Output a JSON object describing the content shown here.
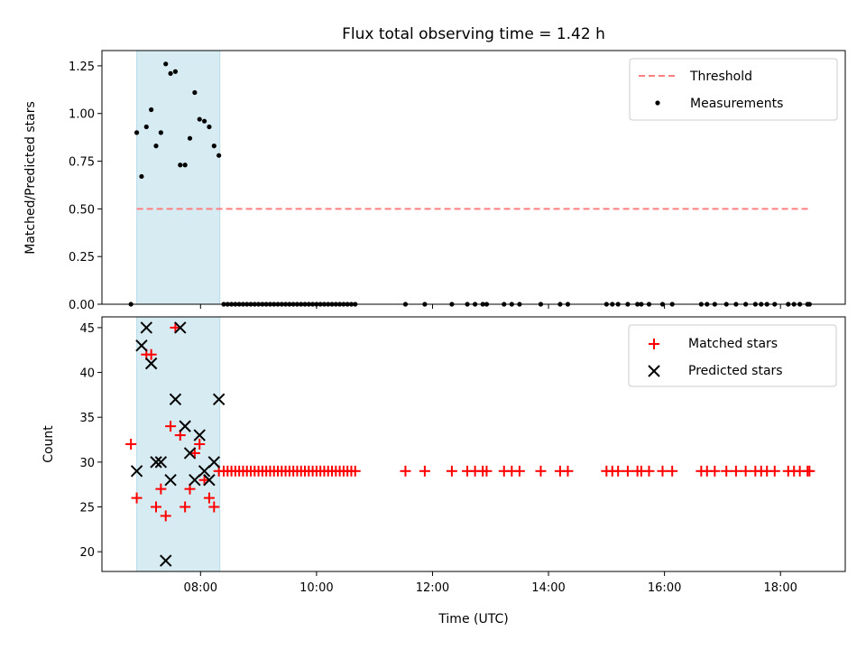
{
  "figure": {
    "title": "Flux total observing time = 1.42 h",
    "xlabel": "Time (UTC)"
  },
  "chart_data": [
    {
      "type": "scatter",
      "name": "top",
      "ylabel": "Matched/Predicted stars",
      "xlim": [
        "06:18",
        "19:07"
      ],
      "ylim": [
        0,
        1.33
      ],
      "yticks": [
        "0.00",
        "0.25",
        "0.50",
        "0.75",
        "1.00",
        "1.25"
      ],
      "ytick_values": [
        0,
        0.25,
        0.5,
        0.75,
        1.0,
        1.25
      ],
      "shaded_span": [
        "06:54",
        "08:20"
      ],
      "shade_color": "#add8e6",
      "threshold": {
        "label": "Threshold",
        "value": 0.5,
        "x_range": [
          "06:54",
          "18:30"
        ],
        "color": "#ff7f7f"
      },
      "series": [
        {
          "name": "Measurements",
          "marker": "dot",
          "color": "#000000",
          "x": [
            "06:48",
            "06:54",
            "06:59",
            "07:04",
            "07:09",
            "07:14",
            "07:19",
            "07:24",
            "07:29",
            "07:34",
            "07:39",
            "07:44",
            "07:49",
            "07:54",
            "07:59",
            "08:04",
            "08:09",
            "08:14",
            "08:19",
            "08:24",
            "08:28",
            "08:32",
            "08:36",
            "08:40",
            "08:44",
            "08:48",
            "08:52",
            "08:56",
            "09:00",
            "09:04",
            "09:08",
            "09:12",
            "09:16",
            "09:20",
            "09:24",
            "09:28",
            "09:32",
            "09:36",
            "09:40",
            "09:44",
            "09:48",
            "09:52",
            "09:56",
            "10:00",
            "10:04",
            "10:08",
            "10:12",
            "10:16",
            "10:20",
            "10:24",
            "10:28",
            "10:32",
            "10:36",
            "10:40",
            "11:32",
            "11:52",
            "12:20",
            "12:36",
            "12:44",
            "12:52",
            "12:56",
            "13:14",
            "13:22",
            "13:30",
            "13:52",
            "14:12",
            "14:20",
            "15:00",
            "15:06",
            "15:12",
            "15:22",
            "15:32",
            "15:36",
            "15:44",
            "15:58",
            "16:08",
            "16:38",
            "16:44",
            "16:52",
            "17:04",
            "17:14",
            "17:24",
            "17:34",
            "17:40",
            "17:46",
            "17:54",
            "18:08",
            "18:14",
            "18:20",
            "18:28",
            "18:30"
          ],
          "y": [
            0.0,
            0.9,
            0.67,
            0.93,
            1.02,
            0.83,
            0.9,
            1.26,
            1.21,
            1.22,
            0.73,
            0.73,
            0.87,
            1.11,
            0.97,
            0.96,
            0.93,
            0.83,
            0.78,
            0.0,
            0.0,
            0.0,
            0.0,
            0.0,
            0.0,
            0.0,
            0.0,
            0.0,
            0.0,
            0.0,
            0.0,
            0.0,
            0.0,
            0.0,
            0.0,
            0.0,
            0.0,
            0.0,
            0.0,
            0.0,
            0.0,
            0.0,
            0.0,
            0.0,
            0.0,
            0.0,
            0.0,
            0.0,
            0.0,
            0.0,
            0.0,
            0.0,
            0.0,
            0.0,
            0.0,
            0.0,
            0.0,
            0.0,
            0.0,
            0.0,
            0.0,
            0.0,
            0.0,
            0.0,
            0.0,
            0.0,
            0.0,
            0.0,
            0.0,
            0.0,
            0.0,
            0.0,
            0.0,
            0.0,
            0.0,
            0.0,
            0.0,
            0.0,
            0.0,
            0.0,
            0.0,
            0.0,
            0.0,
            0.0,
            0.0,
            0.0,
            0.0,
            0.0,
            0.0,
            0.0,
            0.0
          ]
        }
      ],
      "legend": {
        "position": "top-right",
        "entries": [
          "Threshold",
          "Measurements"
        ]
      }
    },
    {
      "type": "scatter",
      "name": "bottom",
      "ylabel": "Count",
      "xlim": [
        "06:18",
        "19:07"
      ],
      "ylim": [
        17.8,
        46.2
      ],
      "yticks": [
        "20",
        "25",
        "30",
        "35",
        "40",
        "45"
      ],
      "ytick_values": [
        20,
        25,
        30,
        35,
        40,
        45
      ],
      "xticks": [
        "08:00",
        "10:00",
        "12:00",
        "14:00",
        "16:00",
        "18:00"
      ],
      "shaded_span": [
        "06:54",
        "08:20"
      ],
      "shade_color": "#add8e6",
      "series": [
        {
          "name": "Matched stars",
          "marker": "plus",
          "color": "#ff0000",
          "x": [
            "06:48",
            "06:54",
            "07:04",
            "07:09",
            "07:14",
            "07:19",
            "07:24",
            "07:29",
            "07:34",
            "07:39",
            "07:44",
            "07:49",
            "07:54",
            "07:59",
            "08:04",
            "08:09",
            "08:14",
            "08:19",
            "08:24",
            "08:28",
            "08:32",
            "08:36",
            "08:40",
            "08:44",
            "08:48",
            "08:52",
            "08:56",
            "09:00",
            "09:04",
            "09:08",
            "09:12",
            "09:16",
            "09:20",
            "09:24",
            "09:28",
            "09:32",
            "09:36",
            "09:40",
            "09:44",
            "09:48",
            "09:52",
            "09:56",
            "10:00",
            "10:04",
            "10:08",
            "10:12",
            "10:16",
            "10:20",
            "10:24",
            "10:28",
            "10:32",
            "10:36",
            "10:40",
            "11:32",
            "11:52",
            "12:20",
            "12:36",
            "12:44",
            "12:52",
            "12:56",
            "13:14",
            "13:22",
            "13:30",
            "13:52",
            "14:12",
            "14:20",
            "15:00",
            "15:06",
            "15:12",
            "15:22",
            "15:32",
            "15:36",
            "15:44",
            "15:58",
            "16:08",
            "16:38",
            "16:44",
            "16:52",
            "17:04",
            "17:14",
            "17:24",
            "17:34",
            "17:40",
            "17:46",
            "17:54",
            "18:08",
            "18:14",
            "18:20",
            "18:28",
            "18:30"
          ],
          "y": [
            32,
            26,
            42,
            42,
            25,
            27,
            24,
            34,
            45,
            33,
            25,
            27,
            31,
            32,
            28,
            26,
            25,
            29,
            29,
            29,
            29,
            29,
            29,
            29,
            29,
            29,
            29,
            29,
            29,
            29,
            29,
            29,
            29,
            29,
            29,
            29,
            29,
            29,
            29,
            29,
            29,
            29,
            29,
            29,
            29,
            29,
            29,
            29,
            29,
            29,
            29,
            29,
            29,
            29,
            29,
            29,
            29,
            29,
            29,
            29,
            29,
            29,
            29,
            29,
            29,
            29,
            29,
            29,
            29,
            29,
            29,
            29,
            29,
            29,
            29,
            29,
            29,
            29,
            29,
            29,
            29,
            29,
            29,
            29,
            29,
            29,
            29,
            29,
            29,
            29
          ]
        },
        {
          "name": "Predicted stars",
          "marker": "x",
          "color": "#000000",
          "x": [
            "06:54",
            "06:59",
            "07:04",
            "07:09",
            "07:14",
            "07:19",
            "07:24",
            "07:29",
            "07:34",
            "07:39",
            "07:44",
            "07:49",
            "07:54",
            "07:59",
            "08:04",
            "08:09",
            "08:14",
            "08:19"
          ],
          "y": [
            29,
            43,
            45,
            41,
            30,
            30,
            19,
            28,
            37,
            45,
            34,
            31,
            28,
            33,
            29,
            28,
            30,
            37
          ]
        }
      ],
      "legend": {
        "position": "top-right",
        "entries": [
          "Matched stars",
          "Predicted stars"
        ]
      }
    }
  ]
}
